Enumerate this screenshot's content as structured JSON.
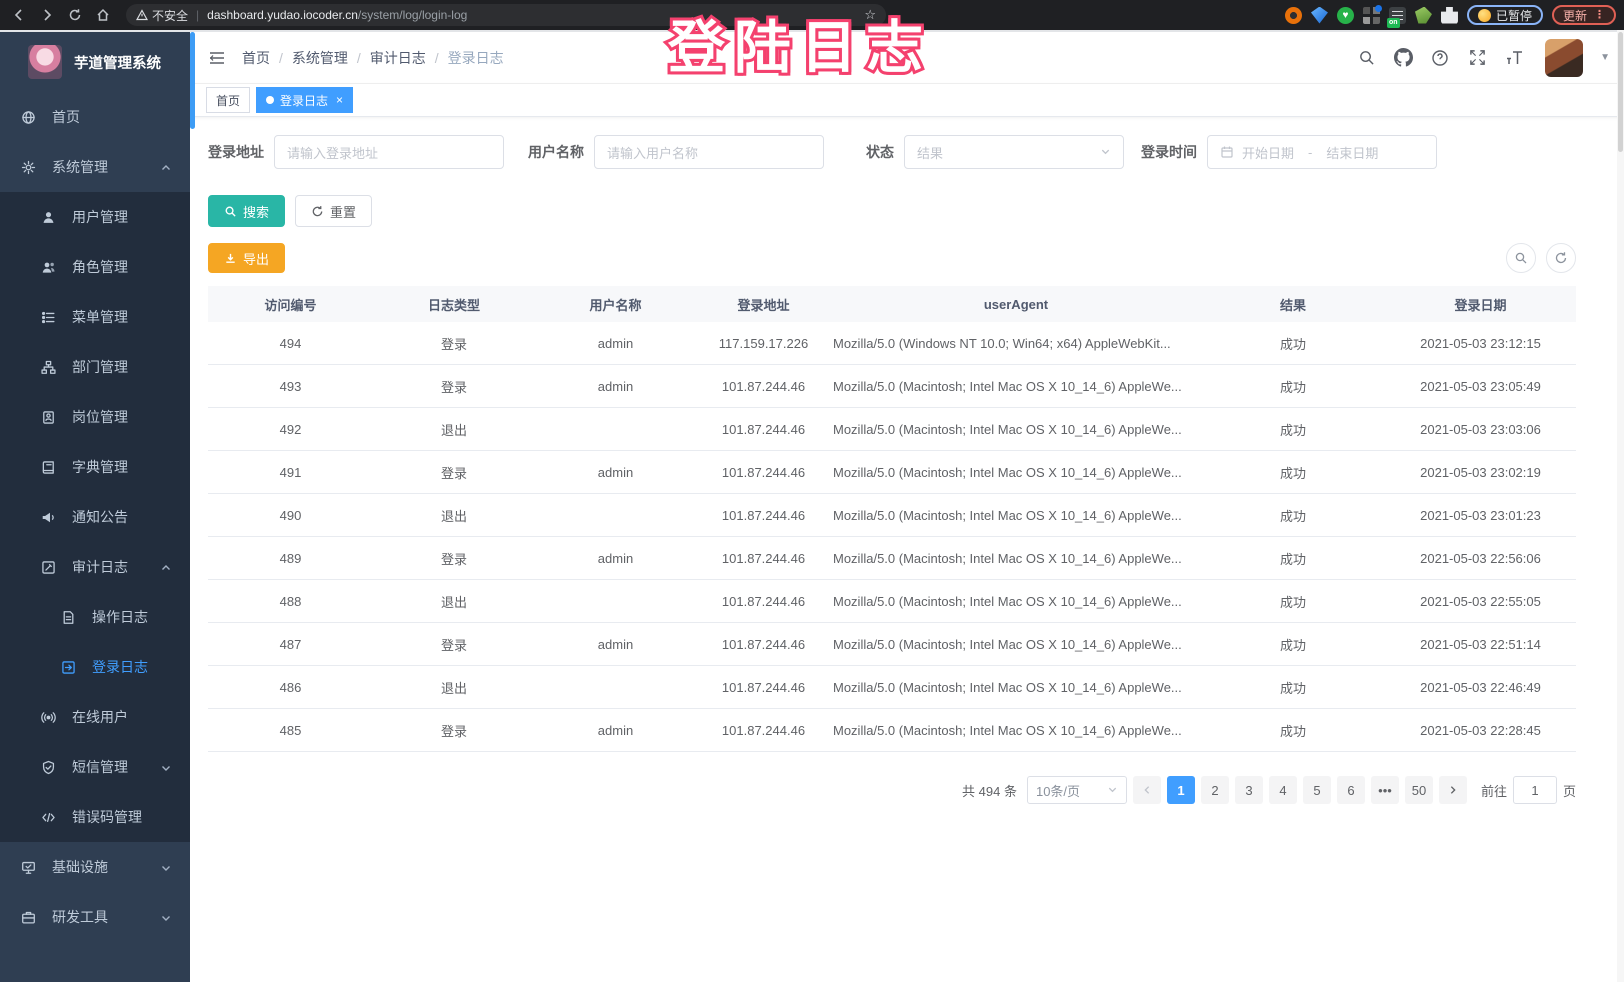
{
  "browser": {
    "security_warning": "不安全",
    "url_domain": "dashboard.yudao.iocoder.cn",
    "url_path": "/system/log/login-log",
    "star_icon": "☆",
    "paused_label": "已暂停",
    "update_label": "更新",
    "extension_on_badge": "on"
  },
  "annotation": {
    "text": "登陆日志",
    "color": "#f4416e"
  },
  "sidebar": {
    "title": "芋道管理系统",
    "items": [
      {
        "label": "首页",
        "icon": "dashboard-icon",
        "level": 1,
        "submenu": false
      },
      {
        "label": "系统管理",
        "icon": "gear-icon",
        "level": 1,
        "submenu": false,
        "expandable": true,
        "expanded": true
      },
      {
        "label": "用户管理",
        "icon": "user-icon",
        "level": 2,
        "submenu": true
      },
      {
        "label": "角色管理",
        "icon": "role-icon",
        "level": 2,
        "submenu": true
      },
      {
        "label": "菜单管理",
        "icon": "menu-list-icon",
        "level": 2,
        "submenu": true
      },
      {
        "label": "部门管理",
        "icon": "org-tree-icon",
        "level": 2,
        "submenu": true
      },
      {
        "label": "岗位管理",
        "icon": "post-badge-icon",
        "level": 2,
        "submenu": true
      },
      {
        "label": "字典管理",
        "icon": "dict-book-icon",
        "level": 2,
        "submenu": true
      },
      {
        "label": "通知公告",
        "icon": "announcement-icon",
        "level": 2,
        "submenu": true
      },
      {
        "label": "审计日志",
        "icon": "audit-log-icon",
        "level": 2,
        "submenu": true,
        "expandable": true,
        "expanded": true
      },
      {
        "label": "操作日志",
        "icon": "operate-log-icon",
        "level": 3,
        "submenu": true
      },
      {
        "label": "登录日志",
        "icon": "login-log-icon",
        "level": 3,
        "submenu": true,
        "active": true
      },
      {
        "label": "在线用户",
        "icon": "online-user-icon",
        "level": 2,
        "submenu": true
      },
      {
        "label": "短信管理",
        "icon": "sms-shield-icon",
        "level": 2,
        "submenu": true,
        "expandable": true,
        "expanded": false
      },
      {
        "label": "错误码管理",
        "icon": "code-icon",
        "level": 2,
        "submenu": true
      },
      {
        "label": "基础设施",
        "icon": "infra-icon",
        "level": 1,
        "submenu": false,
        "expandable": true,
        "expanded": false
      },
      {
        "label": "研发工具",
        "icon": "devtools-icon",
        "level": 1,
        "submenu": false,
        "expandable": true,
        "expanded": false
      }
    ],
    "active_color": "#409eff"
  },
  "header": {
    "breadcrumbs": [
      "首页",
      "系统管理",
      "审计日志",
      "登录日志"
    ]
  },
  "tags": [
    {
      "label": "首页",
      "active": false
    },
    {
      "label": "登录日志",
      "active": true
    }
  ],
  "filters": {
    "login_address": {
      "label": "登录地址",
      "placeholder": "请输入登录地址"
    },
    "username": {
      "label": "用户名称",
      "placeholder": "请输入用户名称"
    },
    "status": {
      "label": "状态",
      "placeholder": "结果"
    },
    "login_time": {
      "label": "登录时间",
      "start_placeholder": "开始日期",
      "separator": "-",
      "end_placeholder": "结束日期"
    }
  },
  "actions": {
    "search": "搜索",
    "reset": "重置",
    "export": "导出"
  },
  "table": {
    "columns": [
      "访问编号",
      "日志类型",
      "用户名称",
      "登录地址",
      "userAgent",
      "结果",
      "登录日期"
    ],
    "rows": [
      [
        "494",
        "登录",
        "admin",
        "117.159.17.226",
        "Mozilla/5.0 (Windows NT 10.0; Win64; x64) AppleWebKit...",
        "成功",
        "2021-05-03 23:12:15"
      ],
      [
        "493",
        "登录",
        "admin",
        "101.87.244.46",
        "Mozilla/5.0 (Macintosh; Intel Mac OS X 10_14_6) AppleWe...",
        "成功",
        "2021-05-03 23:05:49"
      ],
      [
        "492",
        "退出",
        "",
        "101.87.244.46",
        "Mozilla/5.0 (Macintosh; Intel Mac OS X 10_14_6) AppleWe...",
        "成功",
        "2021-05-03 23:03:06"
      ],
      [
        "491",
        "登录",
        "admin",
        "101.87.244.46",
        "Mozilla/5.0 (Macintosh; Intel Mac OS X 10_14_6) AppleWe...",
        "成功",
        "2021-05-03 23:02:19"
      ],
      [
        "490",
        "退出",
        "",
        "101.87.244.46",
        "Mozilla/5.0 (Macintosh; Intel Mac OS X 10_14_6) AppleWe...",
        "成功",
        "2021-05-03 23:01:23"
      ],
      [
        "489",
        "登录",
        "admin",
        "101.87.244.46",
        "Mozilla/5.0 (Macintosh; Intel Mac OS X 10_14_6) AppleWe...",
        "成功",
        "2021-05-03 22:56:06"
      ],
      [
        "488",
        "退出",
        "",
        "101.87.244.46",
        "Mozilla/5.0 (Macintosh; Intel Mac OS X 10_14_6) AppleWe...",
        "成功",
        "2021-05-03 22:55:05"
      ],
      [
        "487",
        "登录",
        "admin",
        "101.87.244.46",
        "Mozilla/5.0 (Macintosh; Intel Mac OS X 10_14_6) AppleWe...",
        "成功",
        "2021-05-03 22:51:14"
      ],
      [
        "486",
        "退出",
        "",
        "101.87.244.46",
        "Mozilla/5.0 (Macintosh; Intel Mac OS X 10_14_6) AppleWe...",
        "成功",
        "2021-05-03 22:46:49"
      ],
      [
        "485",
        "登录",
        "admin",
        "101.87.244.46",
        "Mozilla/5.0 (Macintosh; Intel Mac OS X 10_14_6) AppleWe...",
        "成功",
        "2021-05-03 22:28:45"
      ]
    ]
  },
  "pagination": {
    "total": "共 494 条",
    "page_size": "10条/页",
    "pages": [
      "1",
      "2",
      "3",
      "4",
      "5",
      "6",
      "•••",
      "50"
    ],
    "active_page": "1",
    "goto_label": "前往",
    "goto_value": "1",
    "goto_suffix": "页",
    "active_color": "#409eff"
  }
}
